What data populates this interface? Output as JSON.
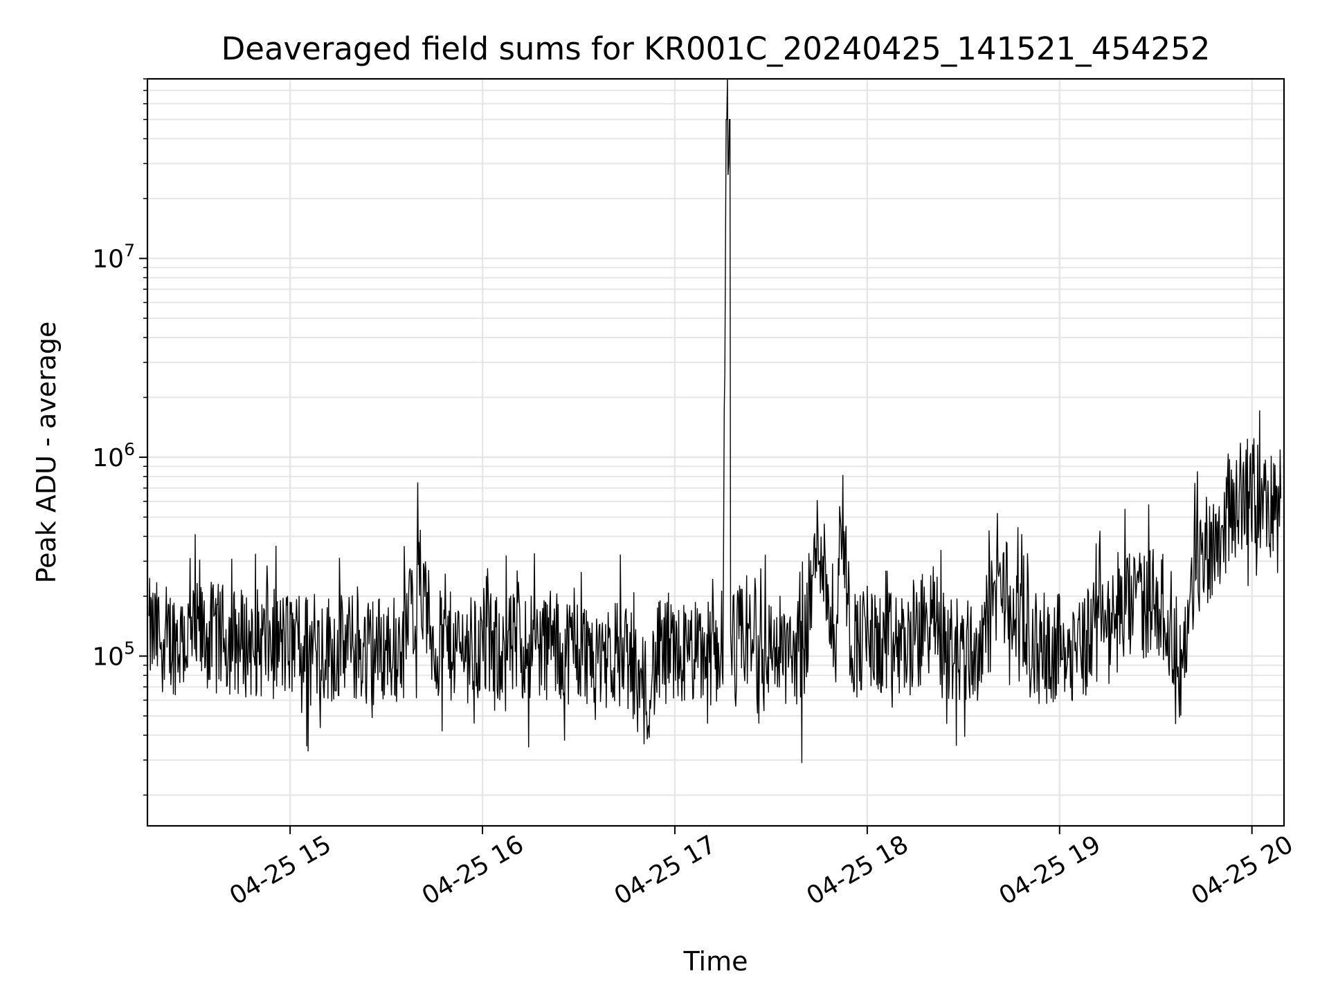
{
  "chart_data": {
    "type": "line",
    "title": "Deaveraged field sums for KR001C_20240425_141521_454252",
    "xlabel": "Time",
    "ylabel": "Peak ADU - average",
    "y_scale": "log",
    "ylim": [
      14000,
      80000000
    ],
    "xlim": [
      "2024-04-25 14:15:30",
      "2024-04-25 20:10:00"
    ],
    "x_tick_labels": [
      "04-25 15",
      "04-25 16",
      "04-25 17",
      "04-25 18",
      "04-25 19",
      "04-25 20"
    ],
    "x_tick_times": [
      "2024-04-25 15:00",
      "2024-04-25 16:00",
      "2024-04-25 17:00",
      "2024-04-25 18:00",
      "2024-04-25 19:00",
      "2024-04-25 20:00"
    ],
    "y_tick_labels": [
      {
        "base": "10",
        "exp": "5",
        "value": 100000
      },
      {
        "base": "10",
        "exp": "6",
        "value": 1000000
      },
      {
        "base": "10",
        "exp": "7",
        "value": 10000000
      }
    ],
    "grid": true,
    "line_color": "#000000",
    "grid_color": "#e6e6e6",
    "series": [
      {
        "x": [
          "14:16",
          "14:25",
          "14:35",
          "14:45",
          "14:55",
          "15:05",
          "15:15",
          "15:25",
          "15:35",
          "15:40",
          "15:45",
          "15:55",
          "16:05",
          "16:15",
          "16:25",
          "16:35",
          "16:45",
          "16:50",
          "16:55",
          "17:05",
          "17:12",
          "17:15",
          "17:16",
          "17:17",
          "17:18",
          "17:20",
          "17:30",
          "17:40",
          "17:45",
          "17:50",
          "17:52",
          "17:55",
          "18:05",
          "18:15",
          "18:20",
          "18:25",
          "18:35",
          "18:42",
          "18:50",
          "19:00",
          "19:10",
          "19:12",
          "19:15",
          "19:20",
          "19:25",
          "19:30",
          "19:35",
          "19:38",
          "19:42",
          "19:45",
          "19:50",
          "19:55",
          "20:00",
          "20:05",
          "20:09"
        ],
        "values": [
          130000,
          120000,
          125000,
          118000,
          115000,
          112000,
          110000,
          108000,
          110000,
          240000,
          112000,
          110000,
          108000,
          115000,
          110000,
          105000,
          102000,
          60000,
          100000,
          102000,
          104000,
          108000,
          50000000,
          50000000,
          110000,
          120000,
          110000,
          105000,
          420000,
          115000,
          560000,
          120000,
          110000,
          115000,
          160000,
          110000,
          105000,
          240000,
          108000,
          110000,
          120000,
          280000,
          130000,
          170000,
          180000,
          200000,
          140000,
          80000,
          260000,
          340000,
          420000,
          600000,
          700000,
          560000,
          620000
        ]
      }
    ]
  }
}
